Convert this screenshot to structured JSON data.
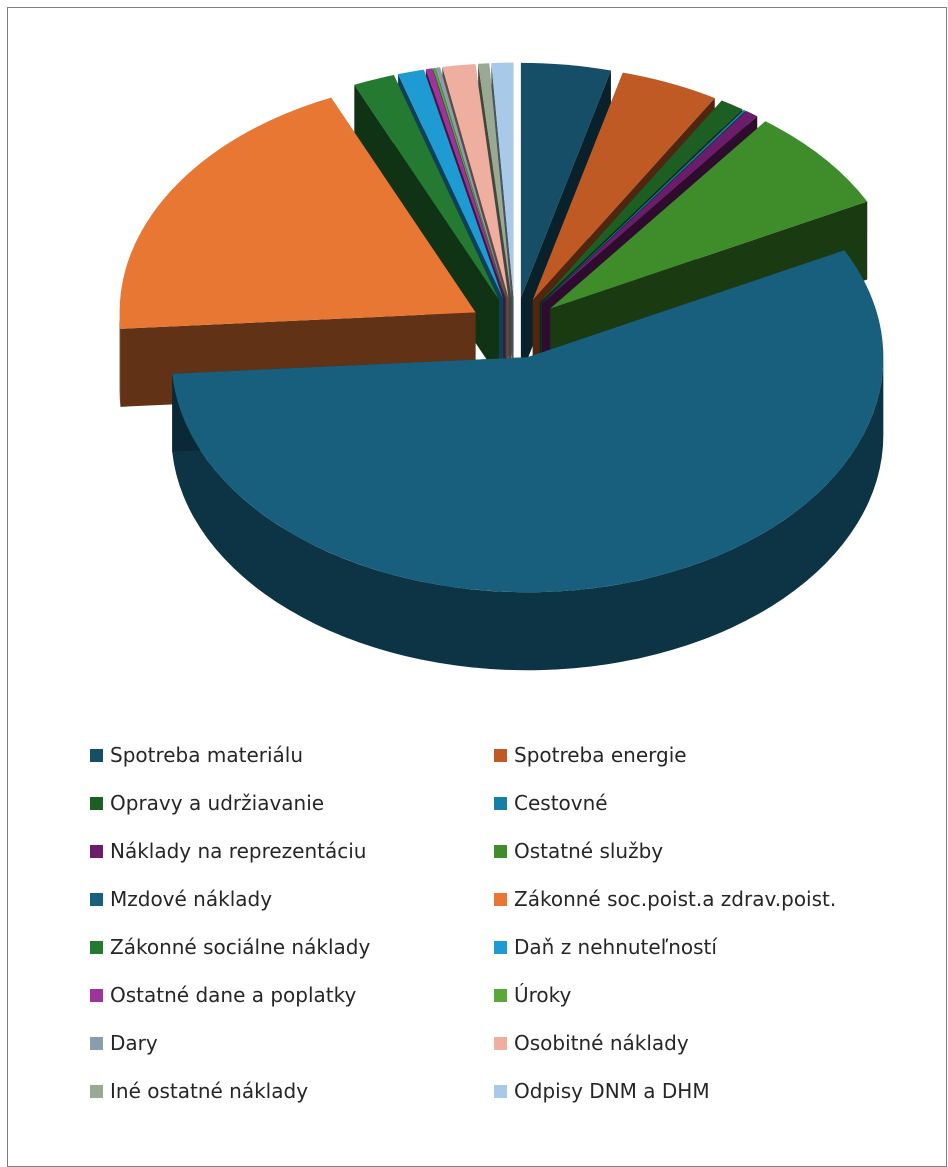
{
  "chart_data": {
    "type": "pie",
    "style": "3d-exploded",
    "legend_position": "bottom",
    "slices": [
      {
        "label": "Spotreba materiálu",
        "value": 4.1,
        "color": "#154e66"
      },
      {
        "label": "Spotreba energie",
        "value": 4.5,
        "color": "#c05a25"
      },
      {
        "label": "Opravy a udržiavanie",
        "value": 1.1,
        "color": "#1d5e23"
      },
      {
        "label": "Cestovné",
        "value": 0.1,
        "color": "#167fa6"
      },
      {
        "label": "Náklady na reprezentáciu",
        "value": 0.6,
        "color": "#6b1d6a"
      },
      {
        "label": "Ostatné služby",
        "value": 7.2,
        "color": "#3f8c2b"
      },
      {
        "label": "Mzdové náklady",
        "value": 56.8,
        "color": "#185f7e"
      },
      {
        "label": "Zákonné soc.poist.a zdrav.poist.",
        "value": 19.6,
        "color": "#e77733"
      },
      {
        "label": "Zákonné sociálne náklady",
        "value": 1.9,
        "color": "#247a30"
      },
      {
        "label": "Daň z nehnuteľností",
        "value": 1.2,
        "color": "#1f9bd3"
      },
      {
        "label": "Ostatné dane a poplatky",
        "value": 0.3,
        "color": "#9e349b"
      },
      {
        "label": "Úroky",
        "value": 0.1,
        "color": "#58a83a"
      },
      {
        "label": "Dary",
        "value": 0.2,
        "color": "#8a9dab"
      },
      {
        "label": "Osobitné náklady",
        "value": 1.5,
        "color": "#eeaea0"
      },
      {
        "label": "Iné ostatné náklady",
        "value": 0.5,
        "color": "#9aaa92"
      },
      {
        "label": "Odpisy DNM a DHM",
        "value": 1.0,
        "color": "#a8c9e8"
      }
    ]
  }
}
